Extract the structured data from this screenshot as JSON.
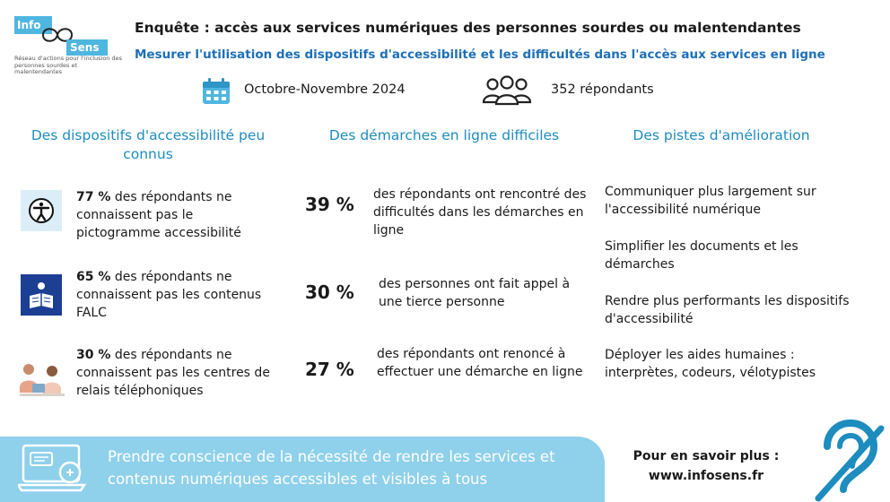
{
  "logo": {
    "word1": "Info",
    "word2": "Sens",
    "tagline": "Réseau d'actions pour l'inclusion des personnes sourdes et malentendantes"
  },
  "header": {
    "title": "Enquête : accès aux services numériques des personnes sourdes ou malentendantes",
    "subtitle": "Mesurer l'utilisation des dispositifs d'accessibilité et les difficultés dans l'accès aux services en ligne",
    "period": "Octobre-Novembre 2024",
    "respondents": "352 répondants"
  },
  "columns": [
    {
      "heading": "Des dispositifs d'accessibilité peu connus",
      "items": [
        {
          "icon": "accessibility-pictogram-icon",
          "value": "77 %",
          "text": " des répondants ne connaissent pas le pictogramme accessibilité"
        },
        {
          "icon": "falc-pictogram-icon",
          "value": "65 %",
          "text": " des répondants ne connaissent pas les contenus FALC"
        },
        {
          "icon": "relay-center-icon",
          "value": "30 %",
          "text": " des répondants ne connaissent pas les centres de relais téléphoniques"
        }
      ]
    },
    {
      "heading": "Des démarches en ligne difficiles",
      "items": [
        {
          "value": "39 %",
          "text": "des répondants ont rencontré des difficultés dans les démarches en ligne"
        },
        {
          "value": "30 %",
          "text": "des personnes ont fait appel à une tierce personne"
        },
        {
          "value": "27 %",
          "text": "des répondants ont renoncé à effectuer une démarche en ligne"
        }
      ]
    },
    {
      "heading": "Des pistes d'amélioration",
      "items": [
        "Communiquer plus largement sur l'accessibilité numérique",
        "Simplifier les documents et les démarches",
        "Rendre plus performants les dispositifs d'accessibilité",
        "Déployer les aides humaines : interprètes, codeurs, vélotypistes"
      ]
    }
  ],
  "footer": {
    "banner": "Prendre conscience de la nécessité de rendre les services et contenus numériques accessibles et visibles à tous",
    "more_label": "Pour en savoir plus :",
    "more_url": "www.infosens.fr"
  },
  "colors": {
    "accent_blue": "#1d8cbf",
    "subtitle_blue": "#1d6fb8",
    "banner": "#8fd0ea",
    "icon_bg": "#dbeef8",
    "falc_blue": "#1c3f94"
  }
}
